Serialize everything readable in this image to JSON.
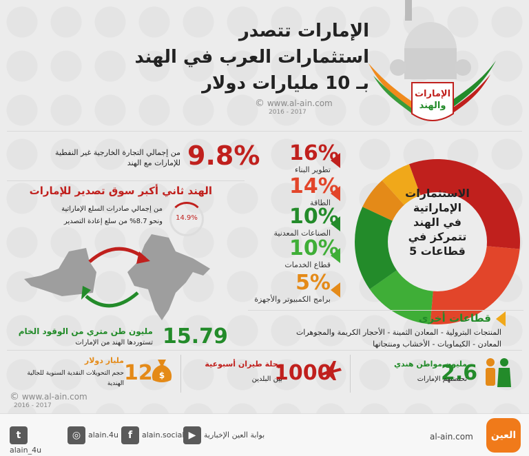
{
  "header": {
    "title_lines": [
      "الإمارات تتصدر",
      "استثمارات العرب في الهند",
      "بـ 10 مليارات دولار"
    ],
    "logo_text": [
      "الإمارات",
      "والهند"
    ],
    "site": "www.al-ain.com",
    "years": "2016 - 2017"
  },
  "trade": {
    "value": "9.8%",
    "desc": [
      "من إجمالي التجارة الخارجية غير النفطية",
      "للإمارات مع الهند"
    ]
  },
  "export_market": {
    "heading": "الهند ثاني أكبر سوق تصدير للإمارات",
    "badge": "14.9%",
    "desc": [
      "من إجمالي صادرات السلع الإماراتية",
      "ونحو 8.7% من سلع إعادة التصدير"
    ]
  },
  "donut": {
    "center_text": [
      "الاستثمارات",
      "الإماراتية",
      "في الهند",
      "تتمركز في",
      "5 قطاعات"
    ]
  },
  "sectors": [
    {
      "pct": "16%",
      "label": "تطوير البناء",
      "color": "#c0201d"
    },
    {
      "pct": "14%",
      "label": "الطاقة",
      "color": "#e2452a"
    },
    {
      "pct": "10%",
      "label": "الصناعات المعدنية",
      "color": "#238b2a"
    },
    {
      "pct": "10%",
      "label": "قطاع الخدمات",
      "color": "#3fae37"
    },
    {
      "pct": "5%",
      "label": "برامج الكمبيوتر والأجهزة",
      "color": "#e48a18"
    }
  ],
  "other_sectors": {
    "heading": "قطاعات أخرى",
    "lines": [
      "المنتجات البترولية - المعادن الثمينة - الأحجار الكريمة والمجوهرات",
      "المعادن - الكيماويات - الأخشاب ومنتجاتها"
    ]
  },
  "crude": {
    "value": "15.79",
    "title": "مليون طن متري من الوقود الخام",
    "sub": "تستوردها الهند من الإمارات"
  },
  "stats": [
    {
      "value": "2.6",
      "title": "مليون مواطن هندي",
      "sub": "تحتضنهم الإمارات",
      "icon": "people-icon"
    },
    {
      "value": "1000",
      "title": "رحلة طيران أسبوعية",
      "sub": "بين البلدين",
      "icon": "airplane-icon"
    },
    {
      "value": "12",
      "title": "مليار دولار",
      "sub": "حجم التحويلات النقدية السنوية للجالية الهندية",
      "icon": "money-bag-icon"
    }
  ],
  "footer": {
    "social": [
      {
        "label": "alain_4u",
        "icon": "twitter-icon",
        "glyph": "t"
      },
      {
        "label": "alain.4u",
        "icon": "instagram-icon",
        "glyph": "◎"
      },
      {
        "label": "alain.social",
        "icon": "facebook-icon",
        "glyph": "f"
      },
      {
        "label": "بوابة العين الإخبارية",
        "icon": "youtube-icon",
        "glyph": "▶"
      }
    ],
    "site": "al-ain.com",
    "brand": "العين"
  },
  "colors": {
    "dark_red": "#c0201d",
    "red": "#e2452a",
    "dark_green": "#238b2a",
    "green": "#3fae37",
    "orange": "#e48a18",
    "yellow": "#f0a81a",
    "gray_map": "#9e9e9e"
  }
}
